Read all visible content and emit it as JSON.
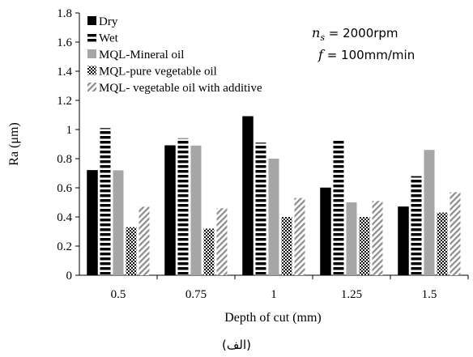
{
  "chart_data": {
    "type": "bar",
    "xlabel": "Depth of cut (mm)",
    "ylabel": "Ra (μm)",
    "ylim": [
      0,
      1.8
    ],
    "yticks": [
      "0",
      "0.2",
      "0.4",
      "0.6",
      "0.8",
      "1",
      "1.2",
      "1.4",
      "1.6",
      "1.8"
    ],
    "categories": [
      "0.5",
      "0.75",
      "1",
      "1.25",
      "1.5"
    ],
    "series": [
      {
        "name": "Dry",
        "values": [
          0.72,
          0.89,
          1.09,
          0.6,
          0.47
        ]
      },
      {
        "name": "Wet",
        "values": [
          1.01,
          0.94,
          0.91,
          0.93,
          0.68
        ]
      },
      {
        "name": "MQL-Mineral oil",
        "values": [
          0.72,
          0.89,
          0.8,
          0.5,
          0.86
        ]
      },
      {
        "name": "MQL-pure vegetable oil",
        "values": [
          0.33,
          0.32,
          0.4,
          0.4,
          0.43
        ]
      },
      {
        "name": "MQL- vegetable oil with additive",
        "values": [
          0.47,
          0.46,
          0.53,
          0.51,
          0.57
        ]
      }
    ],
    "legend_position": "top-left",
    "grid": false,
    "annotations": {
      "speed": {
        "symbol": "n",
        "subscript": "s",
        "text": " = 2000rpm"
      },
      "feed": {
        "symbol": "f",
        "text": " = 100mm/min"
      }
    }
  },
  "caption": "(الف)"
}
